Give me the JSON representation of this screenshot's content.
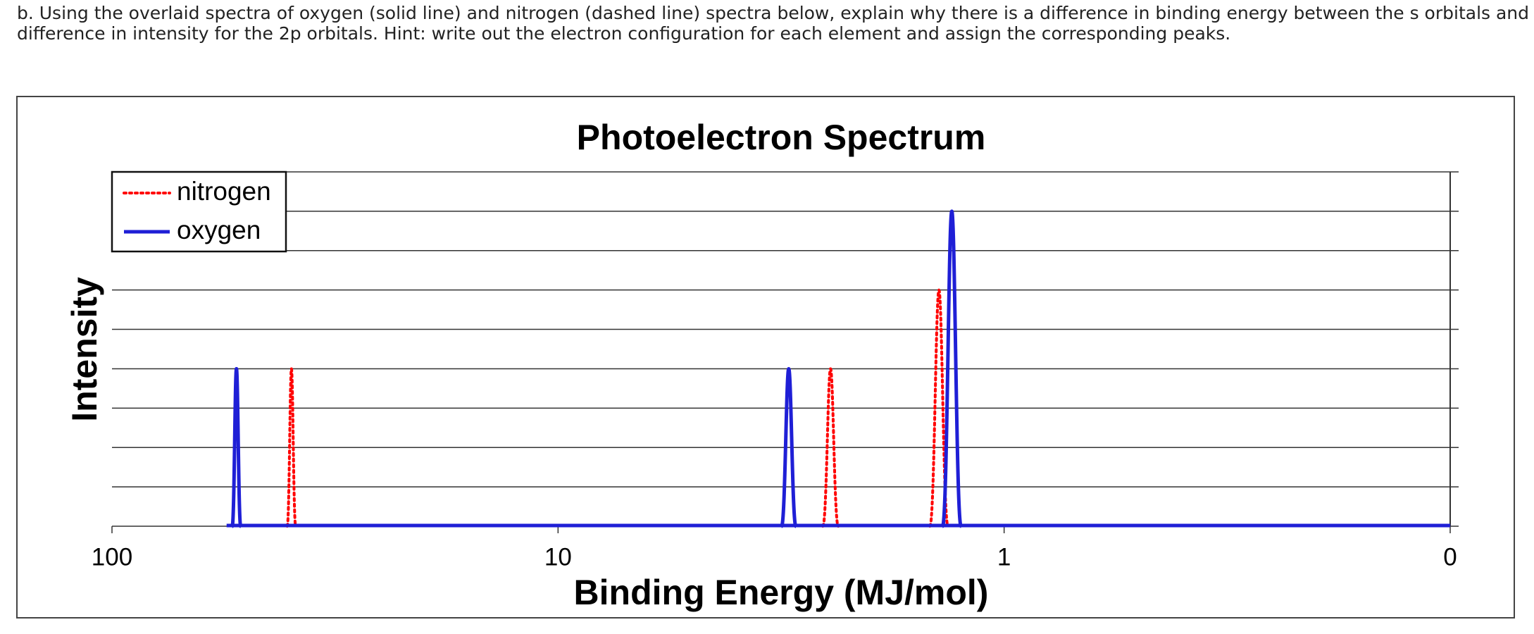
{
  "question": [
    "b.   Using the overlaid spectra of oxygen (solid line) and nitrogen (dashed line) spectra below, explain why there is a difference in binding energy between the s orbitals and a",
    "difference in intensity for the 2p orbitals. Hint: write out the electron configuration for each element and assign the corresponding peaks."
  ],
  "chart_data": {
    "type": "line",
    "title": "Photoelectron Spectrum",
    "x_label": "Binding Energy (MJ/mol)",
    "y_label": "Intensity",
    "xlog": true,
    "xlim": [
      100,
      0.1
    ],
    "xticks": [
      100,
      10,
      1,
      {
        "value": 0.1,
        "label": "0"
      }
    ],
    "ylim": [
      0,
      9
    ],
    "ygrid": [
      1,
      2,
      3,
      4,
      5,
      6,
      7,
      8
    ],
    "grid": true,
    "legend": "upper left",
    "series": [
      {
        "name": "nitrogen",
        "color": "#ff0000",
        "dash": "dotted",
        "x": [
          39.6,
          2.45,
          1.4
        ],
        "values": [
          4,
          4,
          6
        ]
      },
      {
        "name": "oxygen",
        "color": "#1f1fd6",
        "dash": "solid",
        "x": [
          52.6,
          3.04,
          1.31
        ],
        "values": [
          4,
          4,
          8
        ]
      }
    ]
  }
}
